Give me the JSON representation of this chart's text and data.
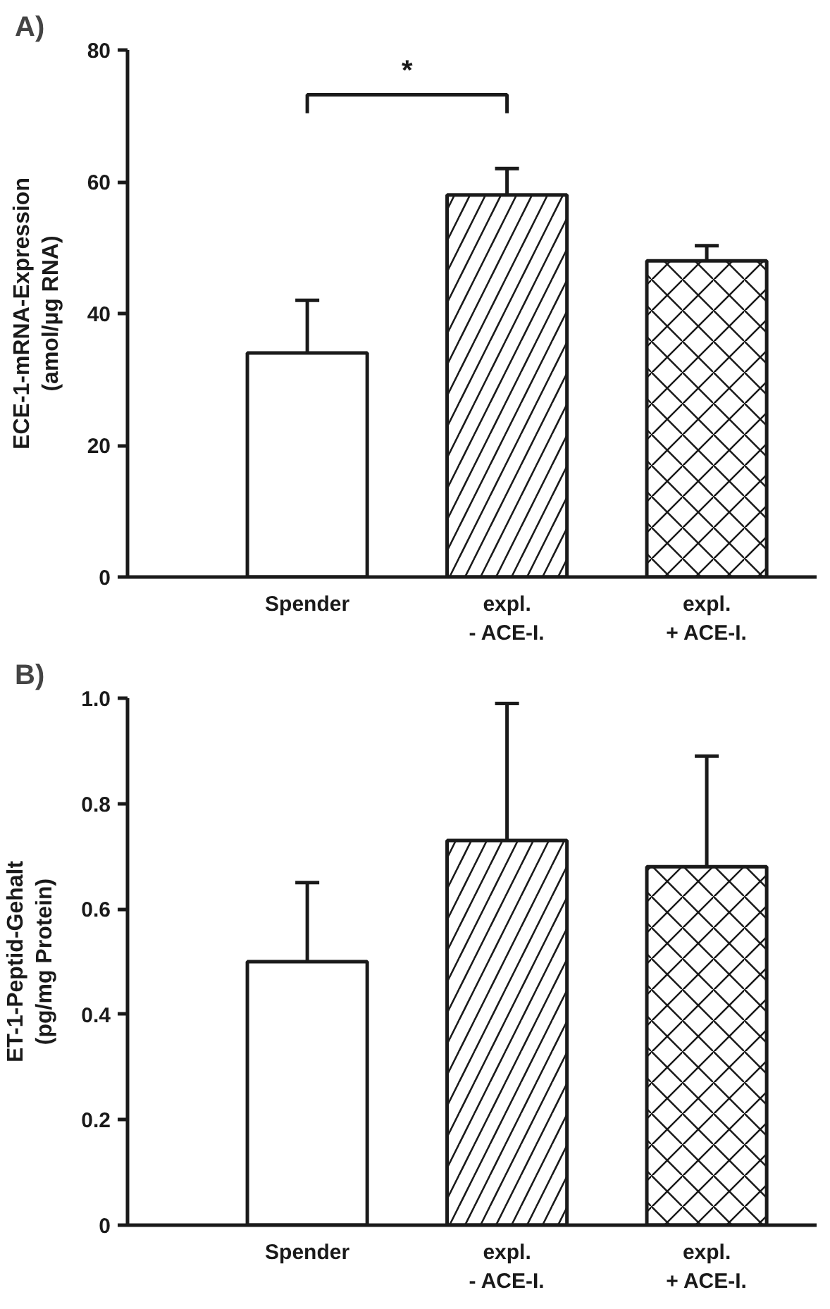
{
  "chart_data": [
    {
      "type": "bar",
      "title": "A)",
      "ylabel": "ECE-1-mRNA-Expression\n(amol/µg RNA)",
      "categories": [
        "Spender",
        "expl.\n- ACE-I.",
        "expl.\n+ ACE-I."
      ],
      "values": [
        34,
        58,
        48
      ],
      "errors": [
        [
          34,
          42
        ],
        [
          58,
          62
        ],
        [
          48,
          50.3
        ]
      ],
      "colors": [
        "#ffffff",
        "#ffffff",
        "#ffffff"
      ],
      "ylim": [
        0,
        80
      ],
      "yticks": [
        0,
        20,
        40,
        60,
        80
      ],
      "grid": false,
      "annotations": [
        "*"
      ]
    },
    {
      "type": "bar",
      "title": "B)",
      "ylabel": "ET-1-Peptid-Gehalt\n(pg/mg Protein)",
      "categories": [
        "Spender",
        "expl.\n- ACE-I.",
        "expl.\n+ ACE-I."
      ],
      "values": [
        0.5,
        0.73,
        0.68
      ],
      "errors": [
        [
          0.5,
          0.65
        ],
        [
          0.73,
          0.99
        ],
        [
          0.68,
          0.89
        ]
      ],
      "colors": [
        "#ffffff",
        "#ffffff",
        "#ffffff"
      ],
      "ylim": [
        0,
        1.0
      ],
      "yticks": [
        0,
        0.2,
        0.4,
        0.6,
        0.8,
        {
          "value": 1.0,
          "label": "1.0"
        }
      ],
      "grid": false
    }
  ]
}
